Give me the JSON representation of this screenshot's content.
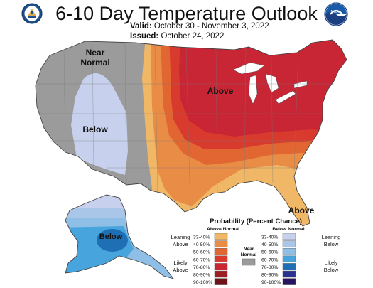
{
  "header": {
    "title": "6-10 Day Temperature Outlook",
    "valid_label": "Valid:",
    "valid_value": "October 30 - November 3, 2022",
    "issued_label": "Issued:",
    "issued_value": "October 24, 2022"
  },
  "map_labels": {
    "near_normal_line1": "Near",
    "near_normal_line2": "Normal",
    "above_main": "Above",
    "below_main": "Below",
    "above_florida": "Above",
    "below_alaska": "Below"
  },
  "legend": {
    "title": "Probability (Percent Chance)",
    "above_header": "Above Normal",
    "below_header": "Below Normal",
    "near_normal_line1": "Near",
    "near_normal_line2": "Normal",
    "leaning_above_line1": "Leaning",
    "leaning_above_line2": "Above",
    "likely_above_line1": "Likely",
    "likely_above_line2": "Above",
    "leaning_below_line1": "Leaning",
    "leaning_below_line2": "Below",
    "likely_below_line1": "Likely",
    "likely_below_line2": "Below",
    "ranges": [
      "33-40%",
      "40-50%",
      "50-60%",
      "60-70%",
      "70-80%",
      "80-90%",
      "90-100%"
    ],
    "above_colors": [
      "#f0b766",
      "#e88c46",
      "#e26632",
      "#d93a2e",
      "#c82535",
      "#9b1f24",
      "#6f1318"
    ],
    "below_colors": [
      "#c7d1ed",
      "#a9c6e9",
      "#8fbfe7",
      "#47a4dd",
      "#1f6fb5",
      "#27338c",
      "#27135f"
    ],
    "near_normal_color": "#9b9b9b"
  },
  "colors": {
    "near_normal": "#9b9b9b",
    "below_33_40": "#c7d1ed",
    "below_40_50": "#a9c6e9",
    "below_50_60": "#8fbfe7",
    "below_60_70": "#47a4dd",
    "below_70_80": "#1f6fb5",
    "above_33_40": "#f0b766",
    "above_40_50": "#e88c46",
    "above_50_60": "#e26632",
    "above_60_70": "#d93a2e",
    "above_70_80": "#c82535"
  }
}
